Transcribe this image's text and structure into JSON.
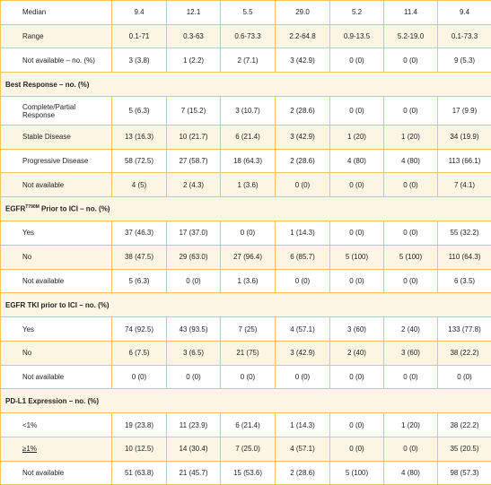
{
  "rows": [
    {
      "type": "data",
      "label": "Median",
      "values": [
        "9.4",
        "12.1",
        "5.5",
        "29.0",
        "5.2",
        "11.4",
        "9.4"
      ]
    },
    {
      "type": "data",
      "label": "Range",
      "values": [
        "0.1-71",
        "0.3-63",
        "0.6-73.3",
        "2.2-64.8",
        "0.9-13.5",
        "5.2-19.0",
        "0.1-73.3"
      ]
    },
    {
      "type": "data",
      "label": "Not available – no. (%)",
      "values": [
        "3 (3.8)",
        "1 (2.2)",
        "2 (7.1)",
        "3 (42.9)",
        "0 (0)",
        "0 (0)",
        "9 (5.3)"
      ]
    },
    {
      "type": "section",
      "label": "Best Response – no. (%)"
    },
    {
      "type": "data",
      "label": "Complete/Partial Response",
      "values": [
        "5 (6.3)",
        "7 (15.2)",
        "3 (10.7)",
        "2 (28.6)",
        "0 (0)",
        "0 (0)",
        "17 (9.9)"
      ],
      "tall": true
    },
    {
      "type": "data",
      "label": "Stable Disease",
      "values": [
        "13 (16.3)",
        "10 (21.7)",
        "6 (21.4)",
        "3 (42.9)",
        "1 (20)",
        "1 (20)",
        "34 (19.9)"
      ]
    },
    {
      "type": "data",
      "label": "Progressive Disease",
      "values": [
        "58 (72.5)",
        "27 (58.7)",
        "18 (64.3)",
        "2 (28.6)",
        "4 (80)",
        "4 (80)",
        "113 (66.1)"
      ]
    },
    {
      "type": "data",
      "label": "Not available",
      "values": [
        "4 (5)",
        "2 (4.3)",
        "1 (3.6)",
        "0 (0)",
        "0 (0)",
        "0 (0)",
        "7 (4.1)"
      ]
    },
    {
      "type": "section",
      "label": "EGFR",
      "sup": "T790M",
      "label_rest": " Prior to ICI – no. (%)"
    },
    {
      "type": "data",
      "label": "Yes",
      "values": [
        "37 (46.3)",
        "17 (37.0)",
        "0 (0)",
        "1 (14.3)",
        "0 (0)",
        "0 (0)",
        "55 (32.2)"
      ]
    },
    {
      "type": "data",
      "label": "No",
      "values": [
        "38 (47.5)",
        "29 (63.0)",
        "27 (96.4)",
        "6 (85.7)",
        "5 (100)",
        "5 (100)",
        "110 (64.3)"
      ]
    },
    {
      "type": "data",
      "label": "Not available",
      "values": [
        "5 (6.3)",
        "0 (0)",
        "1 (3.6)",
        "0 (0)",
        "0 (0)",
        "0 (0)",
        "6 (3.5)"
      ]
    },
    {
      "type": "section",
      "label": "EGFR TKI prior to ICI – no. (%)"
    },
    {
      "type": "data",
      "label": "Yes",
      "values": [
        "74 (92.5)",
        "43 (93.5)",
        "7 (25)",
        "4 (57.1)",
        "3 (60)",
        "2 (40)",
        "133 (77.8)"
      ]
    },
    {
      "type": "data",
      "label": "No",
      "values": [
        "6 (7.5)",
        "3 (6.5)",
        "21 (75)",
        "3 (42.9)",
        "2 (40)",
        "3 (60)",
        "38 (22.2)"
      ]
    },
    {
      "type": "data",
      "label": "Not available",
      "values": [
        "0 (0)",
        "0 (0)",
        "0 (0)",
        "0 (0)",
        "0 (0)",
        "0 (0)",
        "0 (0)"
      ]
    },
    {
      "type": "section",
      "label": "PD-L1 Expression – no. (%)"
    },
    {
      "type": "data",
      "label": "<1%",
      "values": [
        "19 (23.8)",
        "11 (23.9)",
        "6 (21.4)",
        "1 (14.3)",
        "0 (0)",
        "1 (20)",
        "38 (22.2)"
      ]
    },
    {
      "type": "data",
      "label": "≥1%",
      "values": [
        "10 (12.5)",
        "14 (30.4)",
        "7 (25.0)",
        "4 (57.1)",
        "0 (0)",
        "0 (0)",
        "35 (20.5)"
      ],
      "underline": true
    },
    {
      "type": "data",
      "label": "Not available",
      "values": [
        "51 (63.8)",
        "21 (45.7)",
        "15 (53.6)",
        "2 (28.6)",
        "5 (100)",
        "4 (80)",
        "98 (57.3)"
      ]
    }
  ]
}
